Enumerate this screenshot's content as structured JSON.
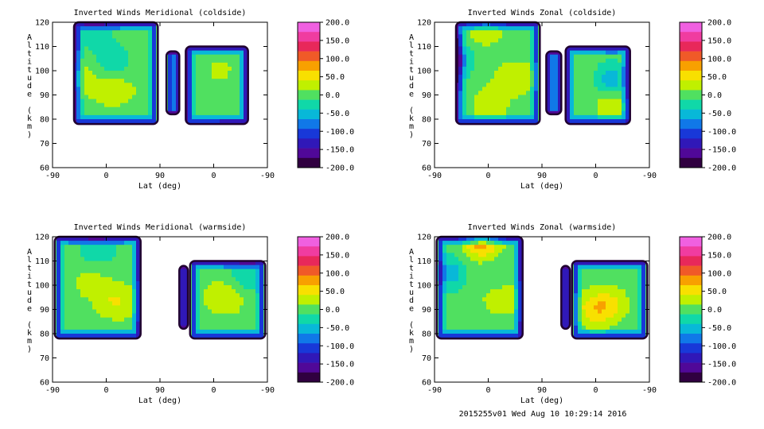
{
  "footer": "2015255v01 Wed Aug 10 10:29:14 2016",
  "chart_data": [
    {
      "type": "heatmap",
      "title": "Inverted Winds Meridional (coldside)",
      "xlabel": "Lat (deg)",
      "ylabel": "Altitude (km)",
      "xticks": [
        "-90",
        "0",
        "90",
        "0",
        "-90"
      ],
      "yticks": [
        60,
        70,
        80,
        90,
        100,
        110,
        120
      ],
      "ylim": [
        60,
        120
      ],
      "colorbar": {
        "ticks": [
          "200.0",
          "150.0",
          "100.0",
          "50.0",
          "0.0",
          "-50.0",
          "-100.0",
          "-150.0",
          "-200.0"
        ],
        "range": [
          -200,
          200
        ]
      },
      "data_extent": "78-120 km on the left block, 78-110 km on the right blocks",
      "dominant_values": "roughly -60 to +50, strongest positive near 90 km"
    },
    {
      "type": "heatmap",
      "title": "Inverted Winds Zonal (coldside)",
      "xlabel": "Lat (deg)",
      "ylabel": "Altitude (km)",
      "xticks": [
        "-90",
        "0",
        "90",
        "0",
        "-90"
      ],
      "yticks": [
        60,
        70,
        80,
        90,
        100,
        110,
        120
      ],
      "ylim": [
        60,
        120
      ],
      "colorbar": {
        "ticks": [
          "200.0",
          "150.0",
          "100.0",
          "50.0",
          "0.0",
          "-50.0",
          "-100.0",
          "-150.0",
          "-200.0"
        ],
        "range": [
          -200,
          200
        ]
      },
      "data_extent": "78-120 km on the left block, 78-110 km on the right blocks",
      "dominant_values": "roughly -80 to +60, positive near 118 km and 88 km"
    },
    {
      "type": "heatmap",
      "title": "Inverted Winds Meridional (warmside)",
      "xlabel": "Lat (deg)",
      "ylabel": "Altitude (km)",
      "xticks": [
        "-90",
        "0",
        "90",
        "0",
        "-90"
      ],
      "yticks": [
        60,
        70,
        80,
        90,
        100,
        110,
        120
      ],
      "ylim": [
        60,
        120
      ],
      "colorbar": {
        "ticks": [
          "200.0",
          "150.0",
          "100.0",
          "50.0",
          "0.0",
          "-50.0",
          "-100.0",
          "-150.0",
          "-200.0"
        ],
        "range": [
          -200,
          200
        ]
      },
      "data_extent": "78-120 km on the left block, 78-110 km on the right blocks",
      "dominant_values": "roughly -60 to +50, positive cores near 93 km"
    },
    {
      "type": "heatmap",
      "title": "Inverted Winds Zonal (warmside)",
      "xlabel": "Lat (deg)",
      "ylabel": "Altitude (km)",
      "xticks": [
        "-90",
        "0",
        "90",
        "0",
        "-90"
      ],
      "yticks": [
        60,
        70,
        80,
        90,
        100,
        110,
        120
      ],
      "ylim": [
        60,
        120
      ],
      "colorbar": {
        "ticks": [
          "200.0",
          "150.0",
          "100.0",
          "50.0",
          "0.0",
          "-50.0",
          "-100.0",
          "-150.0",
          "-200.0"
        ],
        "range": [
          -200,
          200
        ]
      },
      "data_extent": "78-120 km on the left block, 78-110 km on the right blocks",
      "dominant_values": "roughly -80 to +100, strongest positive near 118 km"
    }
  ]
}
